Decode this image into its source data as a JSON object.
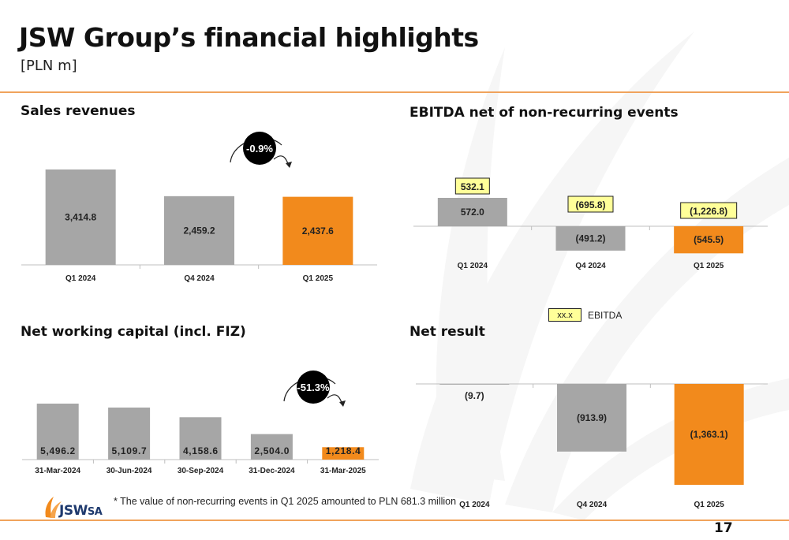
{
  "slide": {
    "title": "JSW Group’s financial highlights",
    "subtitle": "[PLN m]",
    "footnote": "* The value of non-recurring events in Q1 2025 amounted to PLN 681.3 million",
    "page_number": "17",
    "logo_text": "JSW",
    "logo_suffix": "SA",
    "legend_box": "xx.x",
    "legend_label": "EBITDA"
  },
  "colors": {
    "grey": "#a6a6a6",
    "orange": "#f28a1c",
    "highlight": "#ffff99",
    "rule": "#f0a35c"
  },
  "chart_data": [
    {
      "type": "bar",
      "title": "Sales revenues",
      "categories": [
        "Q1 2024",
        "Q4 2024",
        "Q1 2025"
      ],
      "values": [
        3414.8,
        2459.2,
        2437.6
      ],
      "labels": [
        "3,414.8",
        "2,459.2",
        "2,437.6"
      ],
      "highlight_last": true,
      "change_badge": "-0.9%"
    },
    {
      "type": "bar",
      "title": "EBITDA net of non-recurring events",
      "categories": [
        "Q1 2024",
        "Q4 2024",
        "Q1 2025"
      ],
      "values": [
        572.0,
        -491.2,
        -545.5
      ],
      "labels": [
        "572.0",
        "(491.2)",
        "(545.5)"
      ],
      "ebitda_values": [
        532.1,
        -695.8,
        -1226.8
      ],
      "ebitda_labels": [
        "532.1",
        "(695.8)",
        "(1,226.8)"
      ],
      "highlight_last": true
    },
    {
      "type": "bar",
      "title": "Net working capital (incl. FIZ)",
      "categories": [
        "31-Mar-2024",
        "30-Jun-2024",
        "30-Sep-2024",
        "31-Dec-2024",
        "31-Mar-2025"
      ],
      "values": [
        5496.2,
        5109.7,
        4158.6,
        2504.0,
        1218.4
      ],
      "labels": [
        "5,496.2",
        "5,109.7",
        "4,158.6",
        "2,504.0",
        "1,218.4"
      ],
      "highlight_last": true,
      "change_badge": "-51.3%"
    },
    {
      "type": "bar",
      "title": "Net result",
      "categories": [
        "Q1 2024",
        "Q4 2024",
        "Q1 2025"
      ],
      "values": [
        -9.7,
        -913.9,
        -1363.1
      ],
      "labels": [
        "(9.7)",
        "(913.9)",
        "(1,363.1)"
      ],
      "highlight_last": true
    }
  ]
}
